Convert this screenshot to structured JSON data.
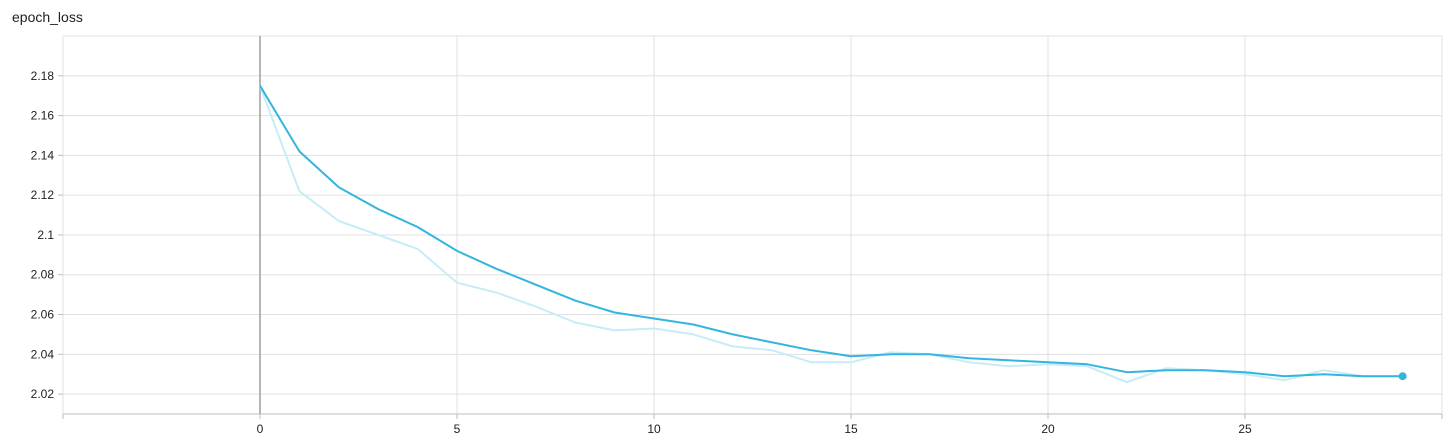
{
  "chart_data": {
    "type": "line",
    "title": "epoch_loss",
    "xlabel": "",
    "ylabel": "",
    "xlim": [
      -5,
      30
    ],
    "ylim": [
      2.01,
      2.2
    ],
    "x_ticks": [
      0,
      5,
      10,
      15,
      20,
      25
    ],
    "y_ticks": [
      2.02,
      2.04,
      2.06,
      2.08,
      2.1,
      2.12,
      2.14,
      2.16,
      2.18
    ],
    "y_tick_labels": [
      "2.02",
      "2.04",
      "2.06",
      "2.08",
      "2.1",
      "2.12",
      "2.14",
      "2.16",
      "2.18"
    ],
    "grid": true,
    "series": [
      {
        "role": "raw",
        "color": "#c7ecf7",
        "x": [
          0,
          1,
          2,
          3,
          4,
          5,
          6,
          7,
          8,
          9,
          10,
          11,
          12,
          13,
          14,
          15,
          16,
          17,
          18,
          19,
          20,
          21,
          22,
          23,
          24,
          25,
          26,
          27,
          28,
          29
        ],
        "y": [
          2.175,
          2.122,
          2.107,
          2.1,
          2.093,
          2.076,
          2.071,
          2.064,
          2.056,
          2.052,
          2.053,
          2.05,
          2.044,
          2.042,
          2.036,
          2.036,
          2.041,
          2.04,
          2.036,
          2.034,
          2.035,
          2.034,
          2.026,
          2.033,
          2.032,
          2.03,
          2.027,
          2.032,
          2.029,
          2.029
        ]
      },
      {
        "role": "smoothed",
        "color": "#33b5e0",
        "x": [
          0,
          1,
          2,
          3,
          4,
          5,
          6,
          7,
          8,
          9,
          10,
          11,
          12,
          13,
          14,
          15,
          16,
          17,
          18,
          19,
          20,
          21,
          22,
          23,
          24,
          25,
          26,
          27,
          28,
          29
        ],
        "y": [
          2.175,
          2.142,
          2.124,
          2.113,
          2.104,
          2.092,
          2.083,
          2.075,
          2.067,
          2.061,
          2.058,
          2.055,
          2.05,
          2.046,
          2.042,
          2.039,
          2.04,
          2.04,
          2.038,
          2.037,
          2.036,
          2.035,
          2.031,
          2.032,
          2.032,
          2.031,
          2.029,
          2.03,
          2.029,
          2.029
        ]
      }
    ]
  }
}
